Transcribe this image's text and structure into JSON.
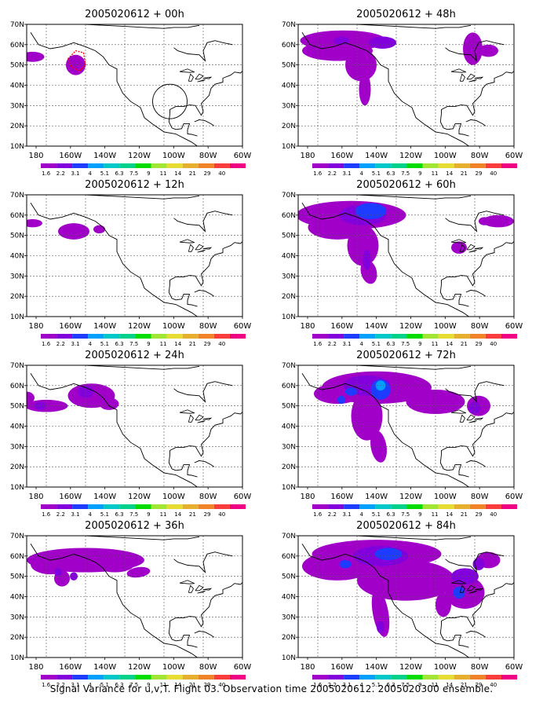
{
  "figure": {
    "footer": "Signal Variance for u,v,T. Flight 03. Observation time 2005020612. 2005020300 ensemble."
  },
  "chart_data": {
    "type": "heatmap",
    "projection": "lat-lon map of North America / NE Pacific",
    "xlim": [
      "190E",
      "60W"
    ],
    "ylim": [
      "10N",
      "70N"
    ],
    "grid": true,
    "xticks": [
      "180",
      "160W",
      "140W",
      "120W",
      "100W",
      "80W",
      "60W"
    ],
    "yticks": [
      "10N",
      "20N",
      "30N",
      "40N",
      "50N",
      "60N",
      "70N"
    ],
    "colorbar": {
      "levels": [
        "1.6",
        "2.2",
        "3.1",
        "4",
        "5.1",
        "6.3",
        "7.5",
        "9",
        "11",
        "14",
        "21",
        "29",
        "40"
      ],
      "colors": [
        "#a000c8",
        "#8200dc",
        "#1e3cff",
        "#00a0ff",
        "#00c8c8",
        "#00d28c",
        "#00dc00",
        "#a0e632",
        "#e6dc32",
        "#e6af2d",
        "#f08228",
        "#fa3c3c",
        "#f00082"
      ]
    },
    "panels": [
      {
        "title": "2005020612 + 00h",
        "max_level": "1.6",
        "regions": [
          "NE Pacific 53N 180",
          "Gulf of Alaska 50N 145W"
        ],
        "annotation": "flight track (red) and observation circle"
      },
      {
        "title": "2005020612 + 12h",
        "max_level": "1.6",
        "regions": [
          "NE Pacific 55N 180",
          "Gulf of Alaska 53N 145W"
        ]
      },
      {
        "title": "2005020612 + 24h",
        "max_level": "2.2",
        "regions": [
          "NE Pacific 50N 165W",
          "Canada 55N 130W"
        ]
      },
      {
        "title": "2005020612 + 36h",
        "max_level": "2.2",
        "regions": [
          "NE Pacific–Canada band 55N"
        ]
      },
      {
        "title": "2005020612 + 48h",
        "max_level": "2.2",
        "regions": [
          "Alaska–Canada 58N",
          "Hudson Bay 55N 85W"
        ]
      },
      {
        "title": "2005020612 + 60h",
        "max_level": "3.1",
        "regions": [
          "Alaska–Canada 58N",
          "W. Canada 60N 130W",
          "Great Lakes 45N",
          "Atlantic 55N 70W"
        ]
      },
      {
        "title": "2005020612 + 72h",
        "max_level": "4",
        "regions": [
          "Canada 60N 130W",
          "E. Canada 50N 75W",
          "W. US 35N 120W"
        ]
      },
      {
        "title": "2005020612 + 84h",
        "max_level": "3.1",
        "regions": [
          "Canada 60N",
          "E. US 40N 80W",
          "W. US 30N 125W"
        ]
      }
    ]
  }
}
